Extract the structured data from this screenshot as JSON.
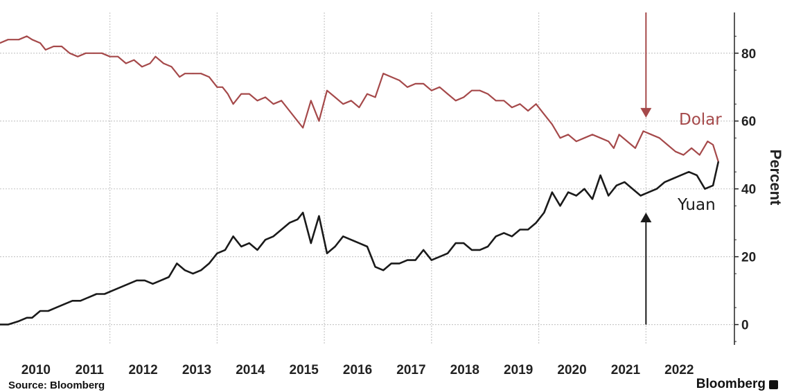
{
  "chart_data": {
    "type": "line",
    "ylabel": "Percent",
    "ylim": [
      -6,
      92
    ],
    "yticks": [
      0,
      20,
      40,
      60,
      80
    ],
    "x_year_labels": [
      "2010",
      "2011",
      "2012",
      "2013",
      "2014",
      "2015",
      "2016",
      "2017",
      "2018",
      "2019",
      "2020",
      "2021",
      "2022"
    ],
    "x_range": [
      2009.45,
      2023.15
    ],
    "grid": true,
    "legend": "inline labels on right",
    "colors": {
      "dolar": "#a5494a",
      "yuan": "#1a1a1a",
      "grid": "#c9c9c9"
    },
    "annotations": [
      {
        "kind": "arrow-down",
        "x": 2021.5,
        "from_y": 92,
        "to_y": 61,
        "color": "#a5494a"
      },
      {
        "kind": "arrow-up",
        "x": 2021.5,
        "from_y": 0,
        "to_y": 33,
        "color": "#1a1a1a"
      }
    ],
    "series": [
      {
        "name": "Dolar",
        "color": "#a5494a",
        "points": [
          [
            2009.45,
            83
          ],
          [
            2009.6,
            84
          ],
          [
            2009.8,
            84
          ],
          [
            2009.95,
            85
          ],
          [
            2010.05,
            84
          ],
          [
            2010.2,
            83
          ],
          [
            2010.3,
            81
          ],
          [
            2010.45,
            82
          ],
          [
            2010.6,
            82
          ],
          [
            2010.75,
            80
          ],
          [
            2010.9,
            79
          ],
          [
            2011.05,
            80
          ],
          [
            2011.2,
            80
          ],
          [
            2011.35,
            80
          ],
          [
            2011.5,
            79
          ],
          [
            2011.65,
            79
          ],
          [
            2011.8,
            77
          ],
          [
            2011.95,
            78
          ],
          [
            2012.1,
            76
          ],
          [
            2012.25,
            77
          ],
          [
            2012.35,
            79
          ],
          [
            2012.5,
            77
          ],
          [
            2012.65,
            76
          ],
          [
            2012.8,
            73
          ],
          [
            2012.9,
            74
          ],
          [
            2013.05,
            74
          ],
          [
            2013.2,
            74
          ],
          [
            2013.35,
            73
          ],
          [
            2013.5,
            70
          ],
          [
            2013.6,
            70
          ],
          [
            2013.7,
            68
          ],
          [
            2013.8,
            65
          ],
          [
            2013.95,
            68
          ],
          [
            2014.1,
            68
          ],
          [
            2014.25,
            66
          ],
          [
            2014.4,
            67
          ],
          [
            2014.55,
            65
          ],
          [
            2014.7,
            66
          ],
          [
            2014.85,
            63
          ],
          [
            2015.0,
            60
          ],
          [
            2015.1,
            58
          ],
          [
            2015.25,
            66
          ],
          [
            2015.4,
            60
          ],
          [
            2015.55,
            69
          ],
          [
            2015.7,
            67
          ],
          [
            2015.85,
            65
          ],
          [
            2016.0,
            66
          ],
          [
            2016.15,
            64
          ],
          [
            2016.3,
            68
          ],
          [
            2016.45,
            67
          ],
          [
            2016.6,
            74
          ],
          [
            2016.75,
            73
          ],
          [
            2016.9,
            72
          ],
          [
            2017.05,
            70
          ],
          [
            2017.2,
            71
          ],
          [
            2017.35,
            71
          ],
          [
            2017.5,
            69
          ],
          [
            2017.65,
            70
          ],
          [
            2017.8,
            68
          ],
          [
            2017.95,
            66
          ],
          [
            2018.1,
            67
          ],
          [
            2018.25,
            69
          ],
          [
            2018.4,
            69
          ],
          [
            2018.55,
            68
          ],
          [
            2018.7,
            66
          ],
          [
            2018.85,
            66
          ],
          [
            2019.0,
            64
          ],
          [
            2019.15,
            65
          ],
          [
            2019.3,
            63
          ],
          [
            2019.45,
            65
          ],
          [
            2019.6,
            62
          ],
          [
            2019.75,
            59
          ],
          [
            2019.9,
            55
          ],
          [
            2020.05,
            56
          ],
          [
            2020.2,
            54
          ],
          [
            2020.35,
            55
          ],
          [
            2020.5,
            56
          ],
          [
            2020.65,
            55
          ],
          [
            2020.8,
            54
          ],
          [
            2020.9,
            52
          ],
          [
            2021.0,
            56
          ],
          [
            2021.15,
            54
          ],
          [
            2021.3,
            52
          ],
          [
            2021.45,
            57
          ],
          [
            2021.6,
            56
          ],
          [
            2021.75,
            55
          ],
          [
            2021.9,
            53
          ],
          [
            2022.05,
            51
          ],
          [
            2022.2,
            50
          ],
          [
            2022.35,
            52
          ],
          [
            2022.5,
            50
          ],
          [
            2022.65,
            54
          ],
          [
            2022.75,
            53
          ],
          [
            2022.85,
            48
          ]
        ]
      },
      {
        "name": "Yuan",
        "color": "#1a1a1a",
        "points": [
          [
            2009.45,
            0
          ],
          [
            2009.6,
            0
          ],
          [
            2009.8,
            1
          ],
          [
            2009.95,
            2
          ],
          [
            2010.05,
            2
          ],
          [
            2010.2,
            4
          ],
          [
            2010.35,
            4
          ],
          [
            2010.5,
            5
          ],
          [
            2010.65,
            6
          ],
          [
            2010.8,
            7
          ],
          [
            2010.95,
            7
          ],
          [
            2011.1,
            8
          ],
          [
            2011.25,
            9
          ],
          [
            2011.4,
            9
          ],
          [
            2011.55,
            10
          ],
          [
            2011.7,
            11
          ],
          [
            2011.85,
            12
          ],
          [
            2012.0,
            13
          ],
          [
            2012.15,
            13
          ],
          [
            2012.3,
            12
          ],
          [
            2012.45,
            13
          ],
          [
            2012.6,
            14
          ],
          [
            2012.75,
            18
          ],
          [
            2012.9,
            16
          ],
          [
            2013.05,
            15
          ],
          [
            2013.2,
            16
          ],
          [
            2013.35,
            18
          ],
          [
            2013.5,
            21
          ],
          [
            2013.65,
            22
          ],
          [
            2013.8,
            26
          ],
          [
            2013.95,
            23
          ],
          [
            2014.1,
            24
          ],
          [
            2014.25,
            22
          ],
          [
            2014.4,
            25
          ],
          [
            2014.55,
            26
          ],
          [
            2014.7,
            28
          ],
          [
            2014.85,
            30
          ],
          [
            2015.0,
            31
          ],
          [
            2015.1,
            33
          ],
          [
            2015.25,
            24
          ],
          [
            2015.4,
            32
          ],
          [
            2015.55,
            21
          ],
          [
            2015.7,
            23
          ],
          [
            2015.85,
            26
          ],
          [
            2016.0,
            25
          ],
          [
            2016.15,
            24
          ],
          [
            2016.3,
            23
          ],
          [
            2016.45,
            17
          ],
          [
            2016.6,
            16
          ],
          [
            2016.75,
            18
          ],
          [
            2016.9,
            18
          ],
          [
            2017.05,
            19
          ],
          [
            2017.2,
            19
          ],
          [
            2017.35,
            22
          ],
          [
            2017.5,
            19
          ],
          [
            2017.65,
            20
          ],
          [
            2017.8,
            21
          ],
          [
            2017.95,
            24
          ],
          [
            2018.1,
            24
          ],
          [
            2018.25,
            22
          ],
          [
            2018.4,
            22
          ],
          [
            2018.55,
            23
          ],
          [
            2018.7,
            26
          ],
          [
            2018.85,
            27
          ],
          [
            2019.0,
            26
          ],
          [
            2019.15,
            28
          ],
          [
            2019.3,
            28
          ],
          [
            2019.45,
            30
          ],
          [
            2019.6,
            33
          ],
          [
            2019.75,
            39
          ],
          [
            2019.9,
            35
          ],
          [
            2020.05,
            39
          ],
          [
            2020.2,
            38
          ],
          [
            2020.35,
            40
          ],
          [
            2020.5,
            37
          ],
          [
            2020.65,
            44
          ],
          [
            2020.8,
            38
          ],
          [
            2020.95,
            41
          ],
          [
            2021.1,
            42
          ],
          [
            2021.25,
            40
          ],
          [
            2021.4,
            38
          ],
          [
            2021.55,
            39
          ],
          [
            2021.7,
            40
          ],
          [
            2021.85,
            42
          ],
          [
            2022.0,
            43
          ],
          [
            2022.15,
            44
          ],
          [
            2022.3,
            45
          ],
          [
            2022.45,
            44
          ],
          [
            2022.6,
            40
          ],
          [
            2022.75,
            41
          ],
          [
            2022.85,
            48
          ]
        ]
      }
    ]
  },
  "footer": {
    "source": "Source: Bloomberg",
    "brand": "Bloomberg"
  }
}
